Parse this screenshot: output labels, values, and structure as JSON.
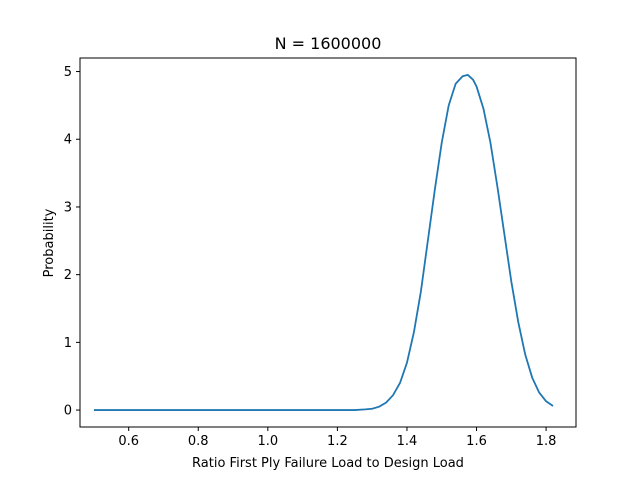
{
  "chart_data": {
    "type": "line",
    "title": "N = 1600000",
    "xlabel": "Ratio First Ply Failure Load to Design Load",
    "ylabel": "Probability",
    "xlim": [
      0.46,
      1.886
    ],
    "ylim": [
      -0.25,
      5.2
    ],
    "xticks": [
      0.6,
      0.8,
      1.0,
      1.2,
      1.4,
      1.6,
      1.8
    ],
    "xtick_labels": [
      "0.6",
      "0.8",
      "1.0",
      "1.2",
      "1.4",
      "1.6",
      "1.8"
    ],
    "yticks": [
      0,
      1,
      2,
      3,
      4,
      5
    ],
    "ytick_labels": [
      "0",
      "1",
      "2",
      "3",
      "4",
      "5"
    ],
    "grid": false,
    "color": "#1f77b4",
    "series": [
      {
        "x": [
          0.5,
          0.6,
          0.7,
          0.8,
          0.9,
          1.0,
          1.1,
          1.2,
          1.25,
          1.28,
          1.3,
          1.32,
          1.34,
          1.36,
          1.38,
          1.4,
          1.42,
          1.44,
          1.46,
          1.48,
          1.5,
          1.52,
          1.54,
          1.56,
          1.575,
          1.59,
          1.6,
          1.62,
          1.64,
          1.66,
          1.68,
          1.7,
          1.72,
          1.74,
          1.76,
          1.78,
          1.8,
          1.82
        ],
        "y": [
          0.0,
          0.0,
          0.0,
          0.0,
          0.0,
          0.0,
          0.0,
          0.0,
          0.0,
          0.01,
          0.02,
          0.05,
          0.11,
          0.22,
          0.4,
          0.7,
          1.15,
          1.75,
          2.5,
          3.25,
          3.95,
          4.5,
          4.82,
          4.93,
          4.95,
          4.88,
          4.78,
          4.45,
          3.95,
          3.3,
          2.6,
          1.9,
          1.3,
          0.82,
          0.48,
          0.26,
          0.13,
          0.06
        ]
      }
    ]
  }
}
